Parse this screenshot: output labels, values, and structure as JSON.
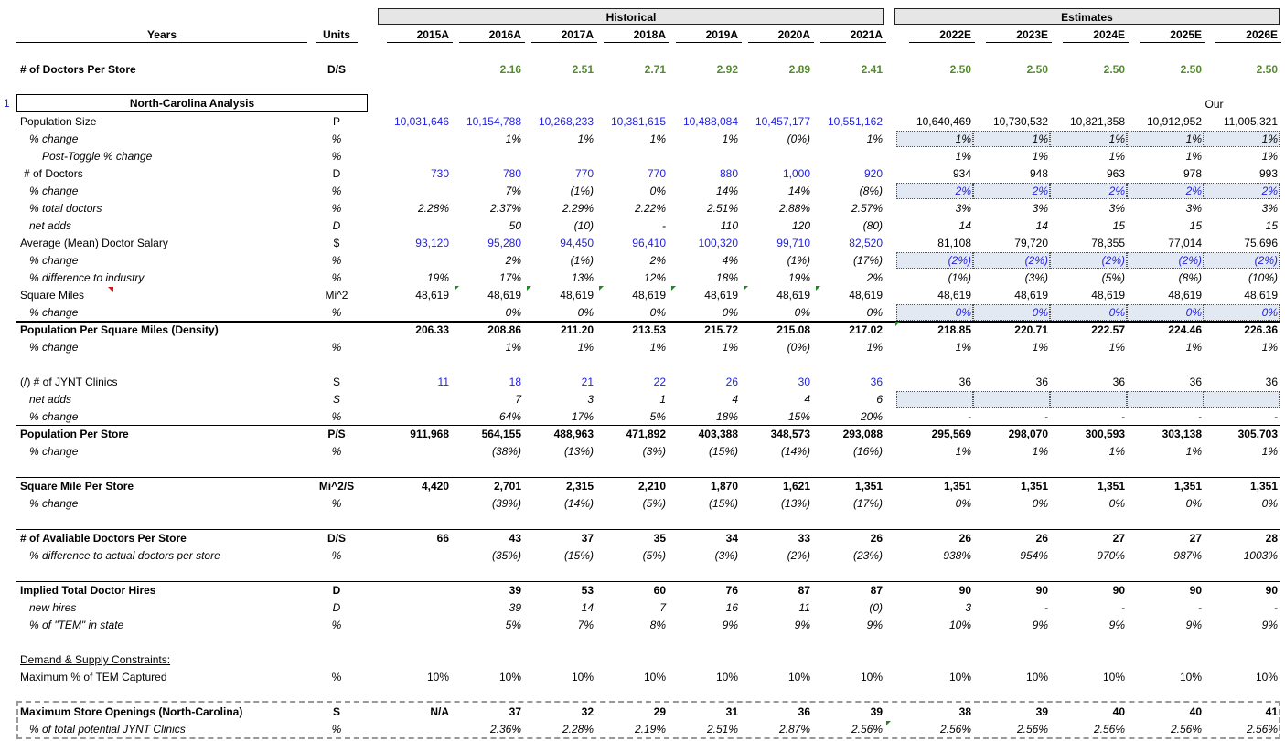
{
  "header": {
    "historical": "Historical",
    "estimates": "Estimates",
    "years_label": "Years",
    "units_label": "Units",
    "years": [
      "2015A",
      "2016A",
      "2017A",
      "2018A",
      "2019A",
      "2020A",
      "2021A",
      "2022E",
      "2023E",
      "2024E",
      "2025E",
      "2026E"
    ]
  },
  "top_row": {
    "label": "# of Doctors Per Store",
    "unit": "D/S",
    "values": [
      "",
      "2.16",
      "2.51",
      "2.71",
      "2.92",
      "2.89",
      "2.41",
      "2.50",
      "2.50",
      "2.50",
      "2.50",
      "2.50"
    ]
  },
  "section": {
    "row_number": "1",
    "title": "North-Carolina Analysis",
    "note": "Our"
  },
  "rows": [
    {
      "label": "Population Size",
      "unit": "P",
      "values": [
        "10,031,646",
        "10,154,788",
        "10,268,233",
        "10,381,615",
        "10,488,084",
        "10,457,177",
        "10,551,162",
        "10,640,469",
        "10,730,532",
        "10,821,358",
        "10,912,952",
        "11,005,321"
      ]
    },
    {
      "label": "% change",
      "unit": "%",
      "values": [
        "",
        "1%",
        "1%",
        "1%",
        "1%",
        "(0%)",
        "1%",
        "1%",
        "1%",
        "1%",
        "1%",
        "1%"
      ]
    },
    {
      "label": "Post-Toggle % change",
      "unit": "%",
      "values": [
        "",
        "",
        "",
        "",
        "",
        "",
        "",
        "1%",
        "1%",
        "1%",
        "1%",
        "1%"
      ]
    },
    {
      "label": "# of Doctors",
      "unit": "D",
      "values": [
        "730",
        "780",
        "770",
        "770",
        "880",
        "1,000",
        "920",
        "934",
        "948",
        "963",
        "978",
        "993"
      ]
    },
    {
      "label": "% change",
      "unit": "%",
      "values": [
        "",
        "7%",
        "(1%)",
        "0%",
        "14%",
        "14%",
        "(8%)",
        "2%",
        "2%",
        "2%",
        "2%",
        "2%"
      ]
    },
    {
      "label": "% total doctors",
      "unit": "%",
      "values": [
        "2.28%",
        "2.37%",
        "2.29%",
        "2.22%",
        "2.51%",
        "2.88%",
        "2.57%",
        "3%",
        "3%",
        "3%",
        "3%",
        "3%"
      ]
    },
    {
      "label": "net adds",
      "unit": "D",
      "values": [
        "",
        "50",
        "(10)",
        "-",
        "110",
        "120",
        "(80)",
        "14",
        "14",
        "15",
        "15",
        "15"
      ]
    },
    {
      "label": "Average (Mean) Doctor Salary",
      "unit": "$",
      "values": [
        "93,120",
        "95,280",
        "94,450",
        "96,410",
        "100,320",
        "99,710",
        "82,520",
        "81,108",
        "79,720",
        "78,355",
        "77,014",
        "75,696"
      ]
    },
    {
      "label": "% change",
      "unit": "%",
      "values": [
        "",
        "2%",
        "(1%)",
        "2%",
        "4%",
        "(1%)",
        "(17%)",
        "(2%)",
        "(2%)",
        "(2%)",
        "(2%)",
        "(2%)"
      ]
    },
    {
      "label": "% difference to industry",
      "unit": "%",
      "values": [
        "19%",
        "17%",
        "13%",
        "12%",
        "18%",
        "19%",
        "2%",
        "(1%)",
        "(3%)",
        "(5%)",
        "(8%)",
        "(10%)"
      ]
    },
    {
      "label": "Square Miles",
      "unit": "Mi^2",
      "values": [
        "48,619",
        "48,619",
        "48,619",
        "48,619",
        "48,619",
        "48,619",
        "48,619",
        "48,619",
        "48,619",
        "48,619",
        "48,619",
        "48,619"
      ]
    },
    {
      "label": "% change",
      "unit": "%",
      "values": [
        "",
        "0%",
        "0%",
        "0%",
        "0%",
        "0%",
        "0%",
        "0%",
        "0%",
        "0%",
        "0%",
        "0%"
      ]
    },
    {
      "label": "Population Per Square Miles (Density)",
      "unit": "",
      "values": [
        "206.33",
        "208.86",
        "211.20",
        "213.53",
        "215.72",
        "215.08",
        "217.02",
        "218.85",
        "220.71",
        "222.57",
        "224.46",
        "226.36"
      ]
    },
    {
      "label": "% change",
      "unit": "%",
      "values": [
        "",
        "1%",
        "1%",
        "1%",
        "1%",
        "(0%)",
        "1%",
        "1%",
        "1%",
        "1%",
        "1%",
        "1%"
      ]
    },
    {
      "label": "(/) # of JYNT Clinics",
      "unit": "S",
      "values": [
        "11",
        "18",
        "21",
        "22",
        "26",
        "30",
        "36",
        "36",
        "36",
        "36",
        "36",
        "36"
      ]
    },
    {
      "label": "net adds",
      "unit": "S",
      "values": [
        "",
        "7",
        "3",
        "1",
        "4",
        "4",
        "6",
        "",
        "",
        "",
        "",
        ""
      ]
    },
    {
      "label": "% change",
      "unit": "%",
      "values": [
        "",
        "64%",
        "17%",
        "5%",
        "18%",
        "15%",
        "20%",
        "-",
        "-",
        "-",
        "-",
        "-"
      ]
    },
    {
      "label": "Population Per Store",
      "unit": "P/S",
      "values": [
        "911,968",
        "564,155",
        "488,963",
        "471,892",
        "403,388",
        "348,573",
        "293,088",
        "295,569",
        "298,070",
        "300,593",
        "303,138",
        "305,703"
      ]
    },
    {
      "label": "% change",
      "unit": "%",
      "values": [
        "",
        "(38%)",
        "(13%)",
        "(3%)",
        "(15%)",
        "(14%)",
        "(16%)",
        "1%",
        "1%",
        "1%",
        "1%",
        "1%"
      ]
    },
    {
      "label": "Square Mile Per Store",
      "unit": "Mi^2/S",
      "values": [
        "4,420",
        "2,701",
        "2,315",
        "2,210",
        "1,870",
        "1,621",
        "1,351",
        "1,351",
        "1,351",
        "1,351",
        "1,351",
        "1,351"
      ]
    },
    {
      "label": "% change",
      "unit": "%",
      "values": [
        "",
        "(39%)",
        "(14%)",
        "(5%)",
        "(15%)",
        "(13%)",
        "(17%)",
        "0%",
        "0%",
        "0%",
        "0%",
        "0%"
      ]
    },
    {
      "label": "# of Avaliable Doctors Per Store",
      "unit": "D/S",
      "values": [
        "66",
        "43",
        "37",
        "35",
        "34",
        "33",
        "26",
        "26",
        "26",
        "27",
        "27",
        "28"
      ]
    },
    {
      "label": "% difference to actual doctors per store",
      "unit": "%",
      "values": [
        "",
        "(35%)",
        "(15%)",
        "(5%)",
        "(3%)",
        "(2%)",
        "(23%)",
        "938%",
        "954%",
        "970%",
        "987%",
        "1003%"
      ]
    },
    {
      "label": "Implied Total Doctor Hires",
      "unit": "D",
      "values": [
        "",
        "39",
        "53",
        "60",
        "76",
        "87",
        "87",
        "90",
        "90",
        "90",
        "90",
        "90"
      ]
    },
    {
      "label": "new hires",
      "unit": "D",
      "values": [
        "",
        "39",
        "14",
        "7",
        "16",
        "11",
        "(0)",
        "3",
        "-",
        "-",
        "-",
        "-"
      ]
    },
    {
      "label": "% of \"TEM\" in state",
      "unit": "%",
      "values": [
        "",
        "5%",
        "7%",
        "8%",
        "9%",
        "9%",
        "9%",
        "10%",
        "9%",
        "9%",
        "9%",
        "9%"
      ]
    },
    {
      "label": "Demand & Supply Constraints:",
      "unit": "",
      "values": [
        "",
        "",
        "",
        "",
        "",
        "",
        "",
        "",
        "",
        "",
        "",
        ""
      ]
    },
    {
      "label": "Maximum % of TEM Captured",
      "unit": "%",
      "values": [
        "10%",
        "10%",
        "10%",
        "10%",
        "10%",
        "10%",
        "10%",
        "10%",
        "10%",
        "10%",
        "10%",
        "10%"
      ]
    },
    {
      "label": "Maximum Store Openings (North-Carolina)",
      "unit": "S",
      "values": [
        "N/A",
        "37",
        "32",
        "29",
        "31",
        "36",
        "39",
        "38",
        "39",
        "40",
        "40",
        "41"
      ]
    },
    {
      "label": "% of total potential JYNT Clinics",
      "unit": "%",
      "values": [
        "",
        "2.36%",
        "2.28%",
        "2.19%",
        "2.51%",
        "2.87%",
        "2.56%",
        "2.56%",
        "2.56%",
        "2.56%",
        "2.56%",
        "2.56%"
      ]
    }
  ],
  "colors": {
    "input_blue": "#2222dd",
    "output_green": "#558833",
    "header_gray": "#e6e6e6",
    "toggle_shade": "#e3e9f3"
  }
}
